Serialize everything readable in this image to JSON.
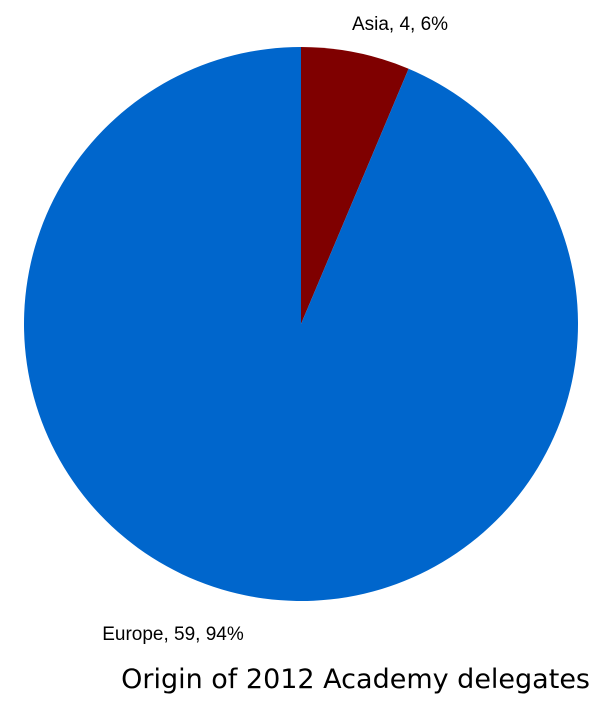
{
  "chart_data": {
    "type": "pie",
    "title": "Origin of 2012 Academy delegates",
    "slices": [
      {
        "label": "Asia",
        "value": 4,
        "percent": "6%",
        "color": "#7f0000"
      },
      {
        "label": "Europe",
        "value": 59,
        "percent": "94%",
        "color": "#0066cc"
      }
    ],
    "start_angle_deg": 0,
    "direction": "clockwise",
    "legend": "none"
  }
}
